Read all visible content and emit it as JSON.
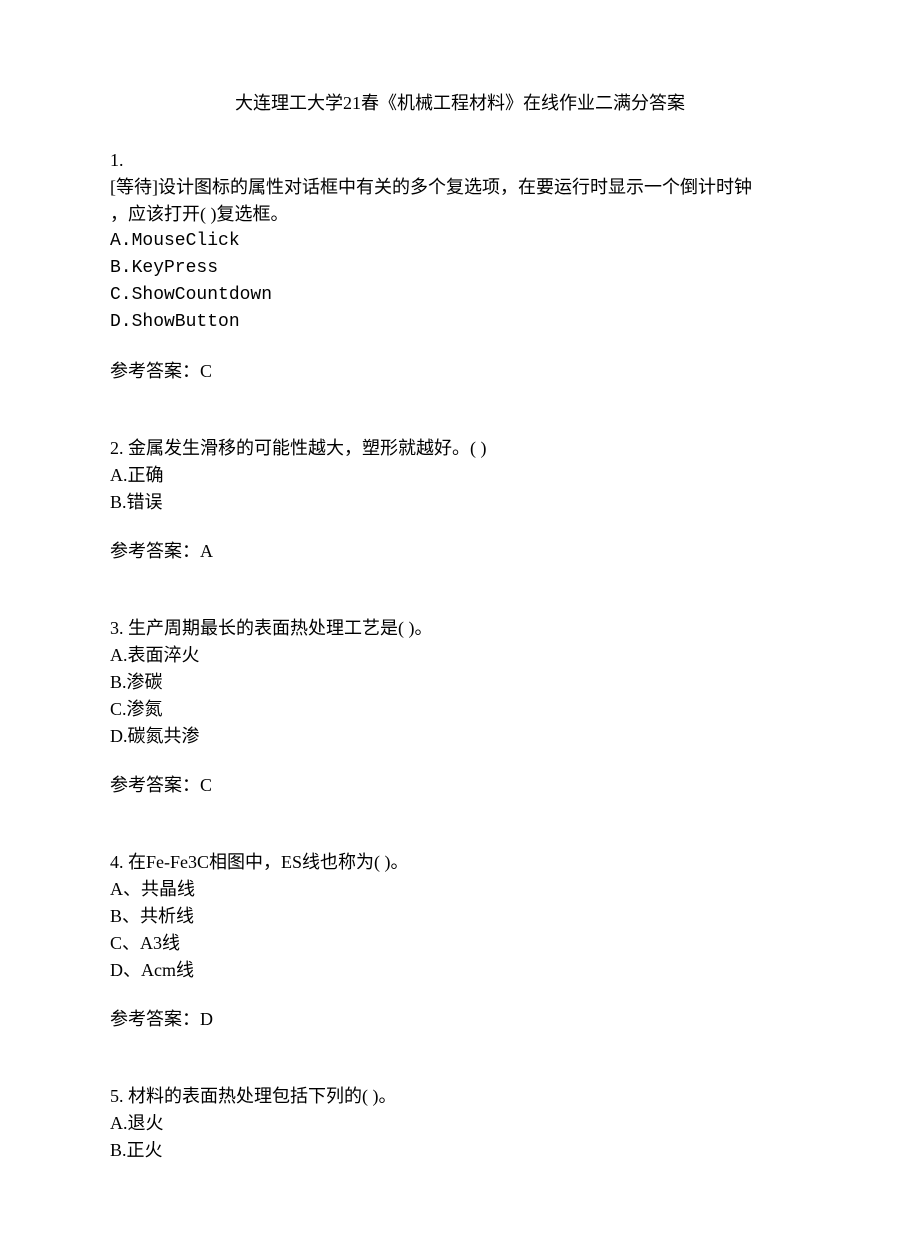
{
  "title": "大连理工大学21春《机械工程材料》在线作业二满分答案",
  "questions": [
    {
      "number": "1.",
      "stem_lines": [
        "[等待]设计图标的属性对话框中有关的多个复选项，在要运行时显示一个倒计时钟",
        "，应该打开(  )复选框。"
      ],
      "options": [
        "A.MouseClick",
        "B.KeyPress",
        "C.ShowCountdown",
        "D.ShowButton"
      ],
      "answer_label": "参考答案：C"
    },
    {
      "number": "2. ",
      "stem_lines": [
        "金属发生滑移的可能性越大，塑形就越好。(  )"
      ],
      "options": [
        "A.正确",
        "B.错误"
      ],
      "answer_label": "参考答案：A"
    },
    {
      "number": "3. ",
      "stem_lines": [
        "生产周期最长的表面热处理工艺是(  )。"
      ],
      "options": [
        "A.表面淬火",
        "B.渗碳",
        "C.渗氮",
        "D.碳氮共渗"
      ],
      "answer_label": "参考答案：C"
    },
    {
      "number": "4. ",
      "stem_lines": [
        "在Fe-Fe3C相图中，ES线也称为(  )。"
      ],
      "options": [
        "A、共晶线",
        "B、共析线",
        "C、A3线",
        "D、Acm线"
      ],
      "answer_label": "参考答案：D"
    },
    {
      "number": "5. ",
      "stem_lines": [
        "材料的表面热处理包括下列的(  )。"
      ],
      "options": [
        "A.退火",
        "B.正火"
      ],
      "answer_label": ""
    }
  ]
}
